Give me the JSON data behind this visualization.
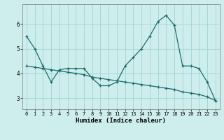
{
  "line1_x": [
    0,
    1,
    2,
    3,
    4,
    5,
    6,
    7,
    8,
    9,
    10,
    11,
    12,
    13,
    14,
    15,
    16,
    17,
    18,
    19,
    20,
    21,
    22,
    23
  ],
  "line1_y": [
    5.5,
    5.0,
    4.3,
    3.65,
    4.15,
    4.2,
    4.2,
    4.2,
    3.8,
    3.5,
    3.5,
    3.65,
    4.3,
    4.65,
    5.0,
    5.5,
    6.1,
    6.35,
    5.95,
    4.3,
    4.3,
    4.2,
    3.65,
    2.9
  ],
  "line2_x": [
    0,
    1,
    2,
    3,
    4,
    5,
    6,
    7,
    8,
    9,
    10,
    11,
    12,
    13,
    14,
    15,
    16,
    17,
    18,
    19,
    20,
    21,
    22,
    23
  ],
  "line2_y": [
    4.3,
    4.25,
    4.2,
    4.15,
    4.1,
    4.05,
    4.0,
    3.95,
    3.85,
    3.8,
    3.75,
    3.7,
    3.65,
    3.6,
    3.55,
    3.5,
    3.45,
    3.4,
    3.35,
    3.25,
    3.2,
    3.15,
    3.05,
    2.9
  ],
  "bg_color": "#ceeeed",
  "grid_color": "#9fd4d3",
  "line_color": "#1a6b6b",
  "xlabel": "Humidex (Indice chaleur)",
  "xlim": [
    -0.5,
    23.5
  ],
  "ylim": [
    2.55,
    6.8
  ],
  "yticks": [
    3,
    4,
    5,
    6
  ],
  "xticks": [
    0,
    1,
    2,
    3,
    4,
    5,
    6,
    7,
    8,
    9,
    10,
    11,
    12,
    13,
    14,
    15,
    16,
    17,
    18,
    19,
    20,
    21,
    22,
    23
  ]
}
